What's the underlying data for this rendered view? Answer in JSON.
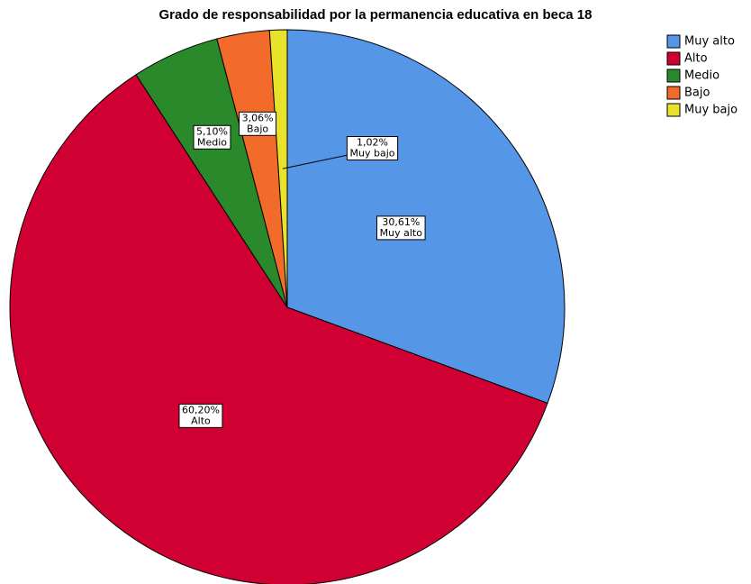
{
  "chart_data": {
    "type": "pie",
    "title": "Grado de responsabilidad por la permanencia educativa en beca 18",
    "categories": [
      "Muy alto",
      "Alto",
      "Medio",
      "Bajo",
      "Muy bajo"
    ],
    "values": [
      30.61,
      60.2,
      5.1,
      3.06,
      1.02
    ],
    "value_labels": [
      "30,61%",
      "60,20%",
      "5,10%",
      "3,06%",
      "1,02%"
    ],
    "colors": [
      "#5596e6",
      "#d10032",
      "#2a8a2b",
      "#f26b2b",
      "#e8e22a"
    ],
    "legend": "top-right"
  }
}
